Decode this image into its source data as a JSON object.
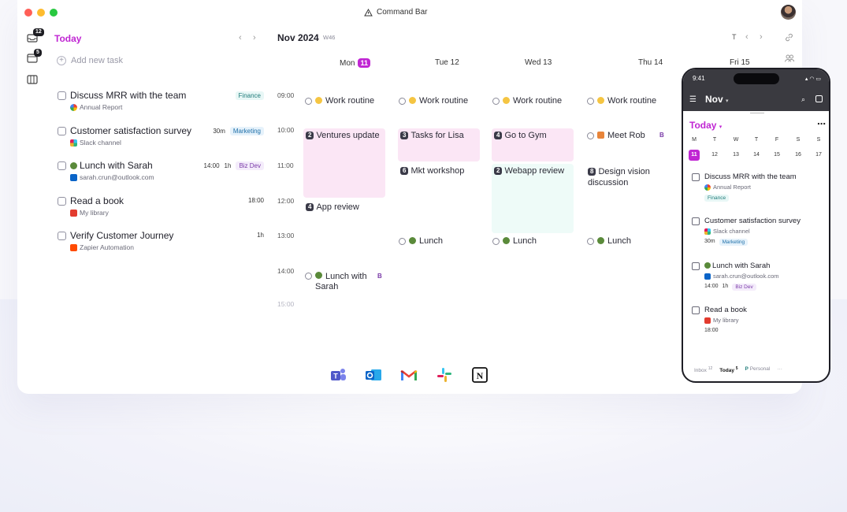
{
  "titlebar": {
    "title": "Command Bar"
  },
  "rail": {
    "inbox_badge": "12",
    "today_badge": "5"
  },
  "tasks_panel": {
    "title": "Today",
    "add_task_label": "Add new task",
    "tasks": [
      {
        "title": "Discuss MRR with the team",
        "source": "Annual Report",
        "source_app": "google",
        "duration": "",
        "time": "",
        "tag": "Finance"
      },
      {
        "title": "Customer satisfaction survey",
        "source": "Slack channel",
        "source_app": "slack",
        "duration": "30m",
        "time": "",
        "tag": "Marketing"
      },
      {
        "title": "Lunch with Sarah",
        "source": "sarah.crun@outlook.com",
        "source_app": "outlook",
        "duration": "1h",
        "time": "14:00",
        "tag": "Biz Dev"
      },
      {
        "title": "Read a book",
        "source": "My library",
        "source_app": "library",
        "duration": "",
        "time": "18:00",
        "tag": ""
      },
      {
        "title": "Verify Customer Journey",
        "source": "Zapier Automation",
        "source_app": "zapier",
        "duration": "1h",
        "time": "",
        "tag": ""
      }
    ]
  },
  "calendar": {
    "month": "Nov 2024",
    "week": "W46",
    "toolbar_t": "T",
    "days": [
      {
        "label": "Mon",
        "date": "11",
        "today": true
      },
      {
        "label": "Tue 12",
        "date": "",
        "today": false
      },
      {
        "label": "Wed 13",
        "date": "",
        "today": false
      },
      {
        "label": "Thu 14",
        "date": "",
        "today": false
      },
      {
        "label": "Fri 15",
        "date": "",
        "today": false
      }
    ],
    "hours": [
      "09:00",
      "10:00",
      "11:00",
      "12:00",
      "13:00",
      "14:00",
      "15:00"
    ],
    "events": {
      "work_routine": "Work routine",
      "lunch": "Lunch",
      "mon_lunch_line1": "Lunch with",
      "mon_lunch_line2": "Sarah",
      "meet_rob": "Meet Rob",
      "flag_b": "B"
    },
    "blocks": {
      "ventures": {
        "num": "2",
        "label": "Ventures update"
      },
      "tasks_lisa": {
        "num": "3",
        "label": "Tasks for Lisa"
      },
      "gym": {
        "num": "4",
        "label": "Go to Gym"
      },
      "mkt": {
        "num": "6",
        "label": "Mkt workshop"
      },
      "webapp": {
        "num": "2",
        "label": "Webapp review"
      },
      "design_line1": "Design vision",
      "design_line2": "discussion",
      "design_num": "8",
      "app_review": {
        "num": "4",
        "label": "App review"
      }
    }
  },
  "integrations": [
    "teams-icon",
    "outlook-icon",
    "gmail-icon",
    "slack-icon",
    "notion-icon"
  ],
  "phone": {
    "time": "9:41",
    "month": "Nov",
    "today": "Today",
    "weekdays": [
      "M",
      "T",
      "W",
      "T",
      "F",
      "S",
      "S"
    ],
    "dates": [
      "11",
      "12",
      "13",
      "14",
      "15",
      "16",
      "17"
    ],
    "tasks": [
      {
        "title": "Discuss MRR with the team",
        "source": "Annual Report",
        "meta": [
          "Finance"
        ]
      },
      {
        "title": "Customer satisfaction survey",
        "source": "Slack channel",
        "meta": [
          "30m",
          "Marketing"
        ]
      },
      {
        "title": "Lunch with Sarah",
        "source": "sarah.crun@outlook.com",
        "meta": [
          "14:00",
          "1h",
          "Biz Dev"
        ]
      },
      {
        "title": "Read a book",
        "source": "My library",
        "meta": [
          "18:00"
        ]
      }
    ],
    "footer": {
      "inbox": "Inbox",
      "inbox_count": "12",
      "today": "Today",
      "today_count": "5",
      "personal_badge": "P",
      "personal": "Personal",
      "more": "···"
    }
  },
  "colors": {
    "accent": "#c026d3",
    "pink_block": "#fbe6f5",
    "mint_block": "#eefbf8"
  }
}
